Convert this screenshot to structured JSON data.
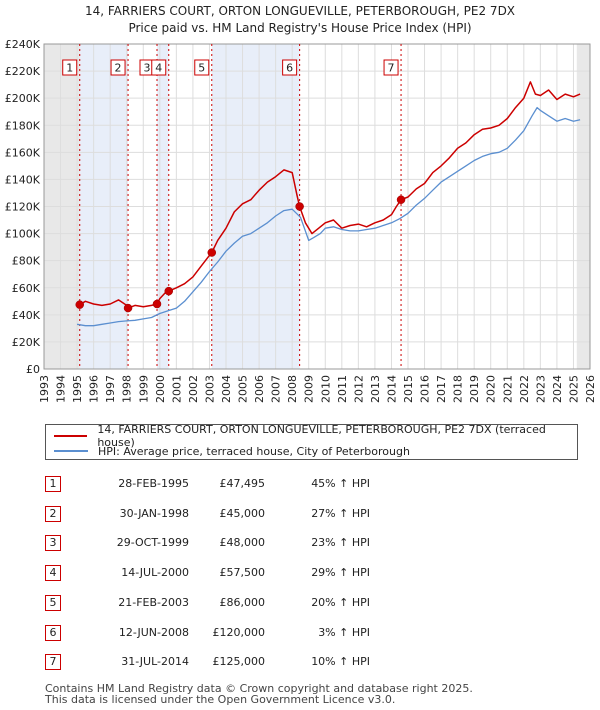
{
  "chart_data": {
    "type": "line",
    "title": "14, FARRIERS COURT, ORTON LONGUEVILLE, PETERBOROUGH, PE2 7DX",
    "subtitle": "Price paid vs. HM Land Registry's House Price Index (HPI)",
    "xlabel": "",
    "ylabel": "",
    "xlim": [
      1993,
      2026
    ],
    "ylim": [
      0,
      240000
    ],
    "x_ticks": [
      1993,
      1994,
      1995,
      1996,
      1997,
      1998,
      1999,
      2000,
      2001,
      2002,
      2003,
      2004,
      2005,
      2006,
      2007,
      2008,
      2009,
      2010,
      2011,
      2012,
      2013,
      2014,
      2015,
      2016,
      2017,
      2018,
      2019,
      2020,
      2021,
      2022,
      2023,
      2024,
      2025,
      2026
    ],
    "y_ticks": [
      0,
      20000,
      40000,
      60000,
      80000,
      100000,
      120000,
      140000,
      160000,
      180000,
      200000,
      220000,
      240000
    ],
    "y_tick_labels": [
      "£0",
      "£20K",
      "£40K",
      "£60K",
      "£80K",
      "£100K",
      "£120K",
      "£140K",
      "£160K",
      "£180K",
      "£200K",
      "£220K",
      "£240K"
    ],
    "shaded_ranges": [
      [
        1993,
        1995.16
      ]
    ],
    "series": [
      {
        "name": "14, FARRIERS COURT, ORTON LONGUEVILLE, PETERBOROUGH, PE2 7DX (terraced house)",
        "color": "#cc0000",
        "x": [
          1995.0,
          1995.16,
          1995.5,
          1996.0,
          1996.5,
          1997.0,
          1997.5,
          1998.0,
          1998.08,
          1998.5,
          1999.0,
          1999.5,
          1999.83,
          2000.0,
          2000.3,
          2000.54,
          2001.0,
          2001.5,
          2002.0,
          2002.5,
          2003.0,
          2003.14,
          2003.5,
          2004.0,
          2004.5,
          2005.0,
          2005.5,
          2006.0,
          2006.5,
          2007.0,
          2007.5,
          2008.0,
          2008.3,
          2008.45,
          2008.8,
          2009.2,
          2009.6,
          2010.0,
          2010.5,
          2011.0,
          2011.5,
          2012.0,
          2012.5,
          2013.0,
          2013.5,
          2014.0,
          2014.3,
          2014.58,
          2015.0,
          2015.5,
          2016.0,
          2016.5,
          2017.0,
          2017.5,
          2018.0,
          2018.5,
          2019.0,
          2019.5,
          2020.0,
          2020.5,
          2021.0,
          2021.5,
          2022.0,
          2022.4,
          2022.7,
          2023.0,
          2023.5,
          2024.0,
          2024.5,
          2025.0,
          2025.4
        ],
        "values": [
          46000,
          47495,
          50000,
          48000,
          47000,
          48000,
          51000,
          47000,
          45000,
          47000,
          46000,
          47000,
          48000,
          52000,
          56000,
          57500,
          60000,
          63000,
          68000,
          76000,
          84000,
          86000,
          95000,
          104000,
          116000,
          122000,
          125000,
          132000,
          138000,
          142000,
          147000,
          145000,
          128000,
          120000,
          108000,
          100000,
          104000,
          108000,
          110000,
          104000,
          106000,
          107000,
          105000,
          108000,
          110000,
          114000,
          120000,
          125000,
          127000,
          133000,
          137000,
          145000,
          150000,
          156000,
          163000,
          167000,
          173000,
          177000,
          178000,
          180000,
          185000,
          193000,
          200000,
          212000,
          203000,
          202000,
          206000,
          199000,
          203000,
          201000,
          203000
        ]
      },
      {
        "name": "HPI: Average price, terraced house, City of Peterborough",
        "color": "#5b8fd0",
        "x": [
          1995.0,
          1995.5,
          1996.0,
          1996.5,
          1997.0,
          1997.5,
          1998.0,
          1998.5,
          1999.0,
          1999.5,
          2000.0,
          2000.5,
          2001.0,
          2001.5,
          2002.0,
          2002.5,
          2003.0,
          2003.5,
          2004.0,
          2004.5,
          2005.0,
          2005.5,
          2006.0,
          2006.5,
          2007.0,
          2007.5,
          2008.0,
          2008.5,
          2009.0,
          2009.3,
          2009.7,
          2010.0,
          2010.5,
          2011.0,
          2011.5,
          2012.0,
          2012.5,
          2013.0,
          2013.5,
          2014.0,
          2014.5,
          2015.0,
          2015.5,
          2016.0,
          2016.5,
          2017.0,
          2017.5,
          2018.0,
          2018.5,
          2019.0,
          2019.5,
          2020.0,
          2020.5,
          2021.0,
          2021.5,
          2022.0,
          2022.5,
          2022.8,
          2023.0,
          2023.5,
          2024.0,
          2024.5,
          2025.0,
          2025.4
        ],
        "values": [
          33000,
          32000,
          32000,
          33000,
          34000,
          35000,
          35500,
          36000,
          37000,
          38000,
          41000,
          43000,
          45000,
          50000,
          57000,
          64000,
          72000,
          79000,
          87000,
          93000,
          98000,
          100000,
          104000,
          108000,
          113000,
          117000,
          118000,
          112000,
          95000,
          97000,
          100000,
          104000,
          105000,
          103000,
          102000,
          102000,
          103000,
          104000,
          106000,
          108000,
          111000,
          115000,
          121000,
          126000,
          132000,
          138000,
          142000,
          146000,
          150000,
          154000,
          157000,
          159000,
          160000,
          163000,
          169000,
          176000,
          187000,
          193000,
          191000,
          187000,
          183000,
          185000,
          183000,
          184000
        ]
      }
    ],
    "transactions": [
      {
        "num": "1",
        "x": 1995.16,
        "price": 47495,
        "date": "28-FEB-1995",
        "price_label": "£47,495",
        "hpi": "45% ↑ HPI"
      },
      {
        "num": "2",
        "x": 1998.08,
        "price": 45000,
        "date": "30-JAN-1998",
        "price_label": "£45,000",
        "hpi": "27% ↑ HPI"
      },
      {
        "num": "3",
        "x": 1999.83,
        "price": 48000,
        "date": "29-OCT-1999",
        "price_label": "£48,000",
        "hpi": "23% ↑ HPI"
      },
      {
        "num": "4",
        "x": 2000.54,
        "price": 57500,
        "date": "14-JUL-2000",
        "price_label": "£57,500",
        "hpi": "29% ↑ HPI"
      },
      {
        "num": "5",
        "x": 2003.14,
        "price": 86000,
        "date": "21-FEB-2003",
        "price_label": "£86,000",
        "hpi": "20% ↑ HPI"
      },
      {
        "num": "6",
        "x": 2008.45,
        "price": 120000,
        "date": "12-JUN-2008",
        "price_label": "£120,000",
        "hpi": "3% ↑ HPI"
      },
      {
        "num": "7",
        "x": 2014.58,
        "price": 125000,
        "date": "31-JUL-2014",
        "price_label": "£125,000",
        "hpi": "10% ↑ HPI"
      }
    ]
  },
  "legend": {
    "red_label": "14, FARRIERS COURT, ORTON LONGUEVILLE, PETERBOROUGH, PE2 7DX (terraced house)",
    "blue_label": "HPI: Average price, terraced house, City of Peterborough"
  },
  "footer": {
    "line1": "Contains HM Land Registry data © Crown copyright and database right 2025.",
    "line2": "This data is licensed under the Open Government Licence v3.0."
  }
}
